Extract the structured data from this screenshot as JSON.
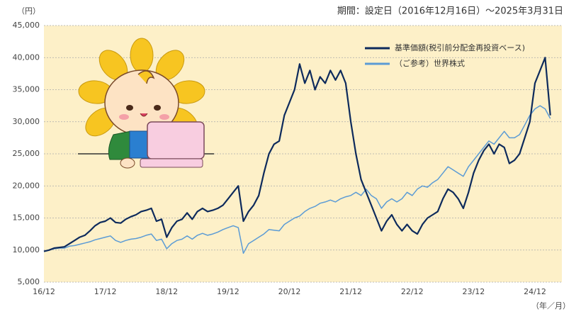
{
  "chart_data": {
    "type": "line",
    "subtitle": "期間：設定日（2016年12月16日）～2025年3月31日",
    "y_unit_label": "（円）",
    "x_unit_label": "（年／月）",
    "categories": [
      "16/12",
      null,
      null,
      null,
      null,
      null,
      null,
      null,
      null,
      null,
      null,
      null,
      "17/12",
      null,
      null,
      null,
      null,
      null,
      null,
      null,
      null,
      null,
      null,
      null,
      "18/12",
      null,
      null,
      null,
      null,
      null,
      null,
      null,
      null,
      null,
      null,
      null,
      "19/12",
      null,
      null,
      null,
      null,
      null,
      null,
      null,
      null,
      null,
      null,
      null,
      "20/12",
      null,
      null,
      null,
      null,
      null,
      null,
      null,
      null,
      null,
      null,
      null,
      "21/12",
      null,
      null,
      null,
      null,
      null,
      null,
      null,
      null,
      null,
      null,
      null,
      "22/12",
      null,
      null,
      null,
      null,
      null,
      null,
      null,
      null,
      null,
      null,
      null,
      "23/12",
      null,
      null,
      null,
      null,
      null,
      null,
      null,
      null,
      null,
      null,
      null,
      "24/12",
      null,
      null,
      null
    ],
    "series": [
      {
        "name": "基準価額(税引前分配金再投資ベース)",
        "color": "#0d2a5c",
        "values": [
          9800,
          10000,
          10300,
          10400,
          10500,
          11000,
          11500,
          12000,
          12300,
          13000,
          13800,
          14300,
          14500,
          15000,
          14300,
          14200,
          14800,
          15200,
          15500,
          16000,
          16200,
          16500,
          14500,
          14800,
          12000,
          13500,
          14500,
          14800,
          15800,
          14800,
          16000,
          16500,
          16000,
          16200,
          16500,
          17000,
          18000,
          19000,
          20000,
          14500,
          16000,
          17000,
          18500,
          22000,
          25000,
          26500,
          27000,
          31000,
          33000,
          35000,
          39000,
          36000,
          38000,
          35000,
          37000,
          36000,
          38000,
          36500,
          38000,
          36000,
          30000,
          25000,
          21000,
          19000,
          17000,
          15000,
          13000,
          14500,
          15500,
          14000,
          13000,
          14000,
          13000,
          12500,
          14000,
          15000,
          15500,
          16000,
          18000,
          19500,
          19000,
          18000,
          16500,
          19000,
          22000,
          24000,
          25500,
          26500,
          25000,
          26500,
          26000,
          23500,
          24000,
          25000,
          27500,
          30000,
          36000,
          38000,
          40000,
          31000
        ]
      },
      {
        "name": "（ご参考）世界株式",
        "color": "#5b9bd5",
        "values": [
          9800,
          10000,
          10200,
          10300,
          10300,
          10600,
          10700,
          10900,
          11100,
          11300,
          11600,
          11800,
          12000,
          12200,
          11500,
          11200,
          11500,
          11700,
          11800,
          12000,
          12300,
          12500,
          11500,
          11700,
          10200,
          11000,
          11500,
          11700,
          12200,
          11700,
          12300,
          12600,
          12300,
          12500,
          12800,
          13200,
          13500,
          13800,
          13500,
          9500,
          11000,
          11500,
          12000,
          12500,
          13200,
          13100,
          13000,
          14000,
          14500,
          15000,
          15300,
          16000,
          16500,
          16800,
          17300,
          17500,
          17800,
          17500,
          18000,
          18300,
          18500,
          19000,
          18500,
          19500,
          18500,
          18000,
          16500,
          17500,
          18000,
          17500,
          18000,
          19000,
          18500,
          19500,
          20000,
          19800,
          20500,
          21000,
          22000,
          23000,
          22500,
          22000,
          21500,
          23000,
          24000,
          25000,
          26000,
          27000,
          26500,
          27500,
          28500,
          27500,
          27500,
          28000,
          29500,
          31000,
          32000,
          32500,
          32000,
          30500
        ]
      }
    ],
    "ylim": [
      5000,
      45000
    ],
    "yticks": [
      {
        "value": 5000,
        "label": "5,000"
      },
      {
        "value": 10000,
        "label": "10,000"
      },
      {
        "value": 15000,
        "label": "15,000"
      },
      {
        "value": 20000,
        "label": "20,000"
      },
      {
        "value": 25000,
        "label": "25,000"
      },
      {
        "value": 30000,
        "label": "30,000"
      },
      {
        "value": 35000,
        "label": "35,000"
      },
      {
        "value": 40000,
        "label": "40,000"
      },
      {
        "value": 45000,
        "label": "45,000"
      }
    ],
    "grid": true,
    "legend": "upper right"
  }
}
